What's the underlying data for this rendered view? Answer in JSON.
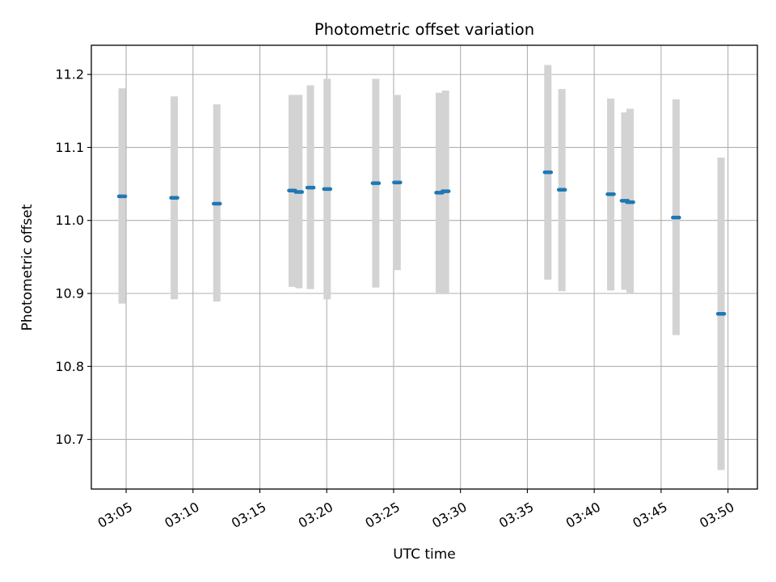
{
  "chart_data": {
    "type": "scatter",
    "title": "Photometric offset variation",
    "xlabel": "UTC time",
    "ylabel": "Photometric offset",
    "x_ticks": [
      "03:05",
      "03:10",
      "03:15",
      "03:20",
      "03:25",
      "03:30",
      "03:35",
      "03:40",
      "03:45",
      "03:50"
    ],
    "y_ticks": [
      "10.7",
      "10.8",
      "10.9",
      "11.0",
      "11.1",
      "11.2"
    ],
    "xlim": [
      "03:02:24",
      "03:52:12"
    ],
    "ylim": [
      10.632,
      11.24
    ],
    "grid": true,
    "colors": {
      "point": "#1f77b4",
      "errorbar": "#d3d3d3",
      "grid": "#b0b0b0"
    },
    "points": [
      {
        "t": "03:04:42",
        "y": 11.033,
        "ylow": 10.886,
        "yhigh": 11.181
      },
      {
        "t": "03:08:36",
        "y": 11.031,
        "ylow": 10.892,
        "yhigh": 11.17
      },
      {
        "t": "03:11:47",
        "y": 11.023,
        "ylow": 10.889,
        "yhigh": 11.159
      },
      {
        "t": "03:17:25",
        "y": 11.041,
        "ylow": 10.909,
        "yhigh": 11.172
      },
      {
        "t": "03:17:55",
        "y": 11.039,
        "ylow": 10.907,
        "yhigh": 11.172
      },
      {
        "t": "03:18:47",
        "y": 11.045,
        "ylow": 10.906,
        "yhigh": 11.185
      },
      {
        "t": "03:20:02",
        "y": 11.043,
        "ylow": 10.892,
        "yhigh": 11.194
      },
      {
        "t": "03:23:40",
        "y": 11.051,
        "ylow": 10.908,
        "yhigh": 11.194
      },
      {
        "t": "03:25:16",
        "y": 11.052,
        "ylow": 10.932,
        "yhigh": 11.172
      },
      {
        "t": "03:28:25",
        "y": 11.038,
        "ylow": 10.9,
        "yhigh": 11.175
      },
      {
        "t": "03:28:53",
        "y": 11.04,
        "ylow": 10.9,
        "yhigh": 11.178
      },
      {
        "t": "03:36:32",
        "y": 11.066,
        "ylow": 10.919,
        "yhigh": 11.213
      },
      {
        "t": "03:37:35",
        "y": 11.042,
        "ylow": 10.903,
        "yhigh": 11.18
      },
      {
        "t": "03:41:14",
        "y": 11.036,
        "ylow": 10.904,
        "yhigh": 11.167
      },
      {
        "t": "03:42:17",
        "y": 11.027,
        "ylow": 10.905,
        "yhigh": 11.148
      },
      {
        "t": "03:42:41",
        "y": 11.025,
        "ylow": 10.9,
        "yhigh": 11.153
      },
      {
        "t": "03:46:07",
        "y": 11.004,
        "ylow": 10.843,
        "yhigh": 11.166
      },
      {
        "t": "03:49:29",
        "y": 10.872,
        "ylow": 10.658,
        "yhigh": 11.086
      }
    ]
  }
}
